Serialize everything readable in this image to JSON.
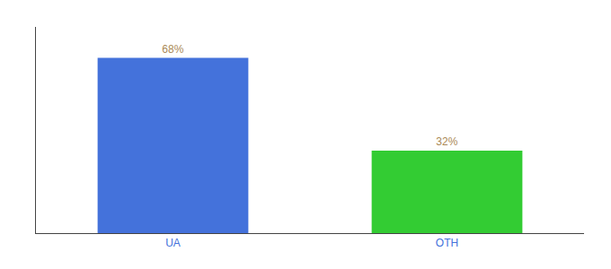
{
  "chart_data": {
    "type": "bar",
    "categories": [
      "UA",
      "OTH"
    ],
    "values": [
      68,
      32
    ],
    "value_labels": [
      "68%",
      "32%"
    ],
    "colors": [
      "#4472DB",
      "#33CC33"
    ],
    "data_labels": true,
    "ylim": [
      0,
      80
    ],
    "tick_labels": "x",
    "grid": false
  }
}
